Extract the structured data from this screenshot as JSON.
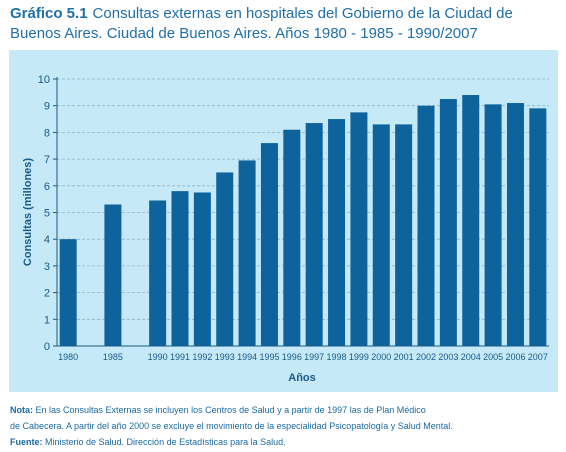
{
  "header": {
    "label": "Gráfico 5.1",
    "title": "Consultas externas en hospitales del Gobierno de la Ciudad de Buenos Aires. Ciudad de Buenos Aires. Años 1980 - 1985 - 1990/2007"
  },
  "chart_data": {
    "type": "bar",
    "categories": [
      "1980",
      "1985",
      "1990",
      "1991",
      "1992",
      "1993",
      "1994",
      "1995",
      "1996",
      "1997",
      "1998",
      "1999",
      "2000",
      "2001",
      "2002",
      "2003",
      "2004",
      "2005",
      "2006",
      "2007"
    ],
    "values": [
      4.0,
      5.3,
      5.45,
      5.8,
      5.75,
      6.5,
      6.95,
      7.6,
      8.1,
      8.35,
      8.5,
      8.75,
      8.3,
      8.3,
      9.0,
      9.25,
      9.4,
      9.05,
      9.1,
      8.9
    ],
    "xlabel": "Años",
    "ylabel": "Consultas (millones)",
    "ylim": [
      0,
      10
    ],
    "yticks": [
      "0",
      "1",
      "2",
      "3",
      "4",
      "5",
      "6",
      "7",
      "8",
      "9",
      "10"
    ],
    "grid": true,
    "bar_color": "#0e639c",
    "background_color": "#c5e9f6"
  },
  "notes": {
    "nota_label": "Nota:",
    "nota_line1": "En las Consultas Externas se incluyen los Centros de Salud y a partir de 1997 las de Plan Médico",
    "nota_line2": "de Cabecera. A partir del año 2000 se excluye el movimiento de la especialidad Psicopatología y Salud Mental.",
    "fuente_label": "Fuente:",
    "fuente_text": "Ministerio de Salud. Dirección de Estadísticas para la Salud."
  }
}
